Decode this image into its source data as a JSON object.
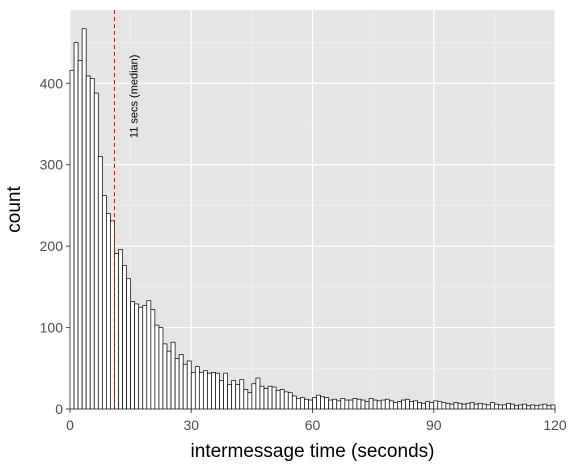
{
  "chart_data": {
    "type": "bar",
    "subtype": "histogram",
    "xlabel": "intermessage time (seconds)",
    "ylabel": "count",
    "xlim": [
      0,
      120
    ],
    "ylim": [
      0,
      490
    ],
    "x_ticks": [
      0,
      30,
      60,
      90,
      120
    ],
    "y_ticks": [
      0,
      100,
      200,
      300,
      400
    ],
    "bin_width": 1,
    "bin_start": 0,
    "bars_fill": "#ffffff",
    "bars_stroke": "#000000",
    "panel_background": "#e5e5e5",
    "grid": true,
    "counts": [
      416,
      450,
      428,
      467,
      409,
      406,
      388,
      310,
      262,
      240,
      231,
      191,
      196,
      176,
      160,
      132,
      129,
      125,
      127,
      133,
      122,
      103,
      100,
      80,
      71,
      82,
      62,
      67,
      55,
      59,
      45,
      52,
      45,
      47,
      44,
      45,
      44,
      35,
      44,
      30,
      35,
      30,
      36,
      24,
      20,
      31,
      38,
      28,
      25,
      28,
      27,
      23,
      24,
      21,
      20,
      16,
      13,
      14,
      12,
      11,
      14,
      17,
      15,
      14,
      11,
      12,
      10,
      13,
      11,
      11,
      13,
      12,
      11,
      9,
      13,
      11,
      10,
      11,
      12,
      10,
      8,
      9,
      11,
      12,
      9,
      10,
      8,
      7,
      9,
      8,
      10,
      9,
      8,
      7,
      6,
      8,
      7,
      6,
      7,
      8,
      6,
      7,
      6,
      5,
      8,
      6,
      5,
      5,
      7,
      6,
      4,
      5,
      6,
      4,
      5,
      4,
      5,
      6,
      4,
      5
    ],
    "median": 11,
    "median_line_color": "#ff0000",
    "annotation": "11 secs (median)"
  }
}
